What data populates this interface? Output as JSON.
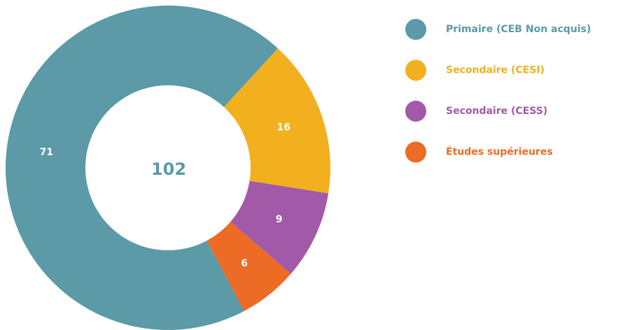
{
  "chart_data": {
    "type": "donut",
    "categories": [
      "Primaire (CEB Non acquis)",
      "Secondaire (CESI)",
      "Secondaire (CESS)",
      "Études supérieures"
    ],
    "values": [
      71,
      16,
      9,
      6
    ],
    "colors": [
      "#5b9aa6",
      "#f2b01e",
      "#a259a8",
      "#ec6b25"
    ],
    "total": 102,
    "legend": "right"
  }
}
